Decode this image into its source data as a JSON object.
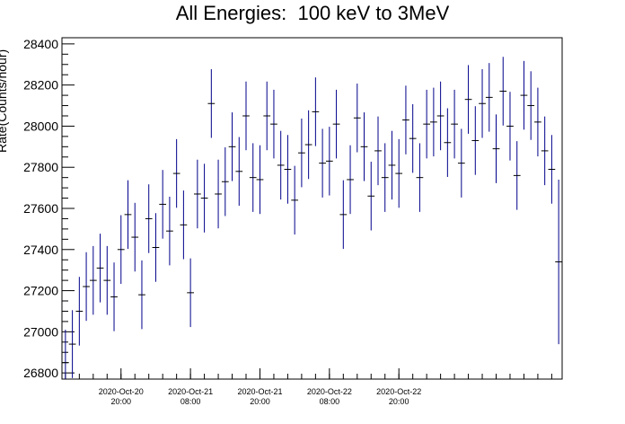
{
  "chart_data": {
    "type": "scatter",
    "title": "All Energies:  100 keV to 3MeV",
    "ylabel": "Rate(Counts/hour)",
    "xlabel": "",
    "ylim": [
      26770,
      28430
    ],
    "yticks": [
      26800,
      27000,
      27200,
      27400,
      27600,
      27800,
      28000,
      28200,
      28400
    ],
    "xticks": [
      {
        "date": "2020-Oct-20",
        "time": "20:00",
        "bin": 8.5
      },
      {
        "date": "2020-Oct-21",
        "time": "08:00",
        "bin": 18.5
      },
      {
        "date": "2020-Oct-21",
        "time": "20:00",
        "bin": 28.5
      },
      {
        "date": "2020-Oct-22",
        "time": "08:00",
        "bin": 38.5
      },
      {
        "date": "2020-Oct-22",
        "time": "20:00",
        "bin": 48.5
      }
    ],
    "grid": false,
    "marker_color": "#00008b",
    "series": [
      {
        "name": "",
        "values": [
          26850,
          26940,
          27100,
          27220,
          27250,
          27310,
          27250,
          27170,
          27400,
          27570,
          27460,
          27180,
          27550,
          27410,
          27620,
          27490,
          27770,
          27520,
          27190,
          27670,
          27650,
          28110,
          27670,
          27730,
          27900,
          27780,
          28050,
          27750,
          27740,
          28050,
          28010,
          27810,
          27790,
          27640,
          27870,
          27910,
          28070,
          27820,
          27830,
          28010,
          27570,
          27740,
          28040,
          27900,
          27660,
          27880,
          27750,
          27810,
          27770,
          28030,
          27940,
          27750,
          28010,
          28020,
          28050,
          27920,
          28010,
          27820,
          28130,
          27930,
          28110,
          28140,
          27890,
          28170,
          28000,
          27760,
          28150,
          28100,
          28020,
          27880,
          27790,
          27340
        ],
        "errors": [
          160,
          165,
          167,
          167,
          167,
          167,
          167,
          167,
          167,
          167,
          167,
          167,
          167,
          167,
          167,
          167,
          167,
          167,
          167,
          167,
          167,
          167,
          167,
          167,
          167,
          167,
          167,
          167,
          167,
          167,
          167,
          167,
          167,
          167,
          167,
          167,
          167,
          167,
          167,
          167,
          167,
          167,
          167,
          167,
          167,
          167,
          167,
          167,
          167,
          167,
          167,
          167,
          167,
          167,
          167,
          167,
          167,
          167,
          167,
          167,
          167,
          167,
          167,
          167,
          167,
          167,
          167,
          167,
          167,
          167,
          167,
          400
        ]
      }
    ]
  }
}
